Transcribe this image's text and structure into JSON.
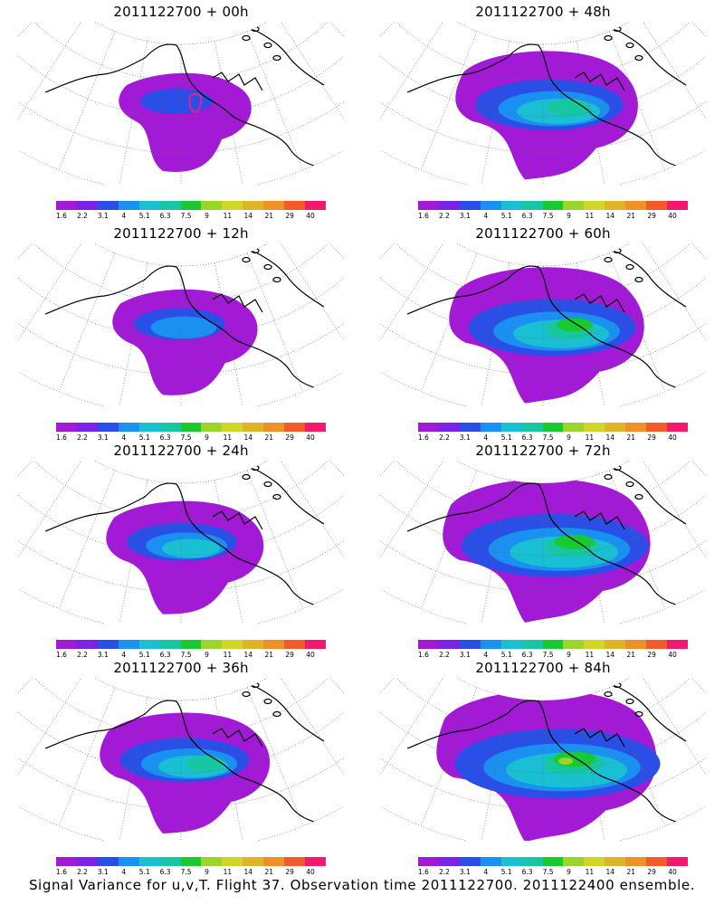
{
  "panels": [
    {
      "title": "2011122700 + 00h",
      "level": 0
    },
    {
      "title": "2011122700 + 12h",
      "level": 1
    },
    {
      "title": "2011122700 + 24h",
      "level": 2
    },
    {
      "title": "2011122700 + 36h",
      "level": 3
    },
    {
      "title": "2011122700 + 48h",
      "level": 4
    },
    {
      "title": "2011122700 + 60h",
      "level": 5
    },
    {
      "title": "2011122700 + 72h",
      "level": 6
    },
    {
      "title": "2011122700 + 84h",
      "level": 7
    }
  ],
  "colorbar": {
    "labels": [
      "1.6",
      "2.2",
      "3.1",
      "4",
      "5.1",
      "6.3",
      "7.5",
      "9",
      "11",
      "14",
      "21",
      "29",
      "40"
    ],
    "colors": [
      "#a21ad6",
      "#7a22e6",
      "#2a4fe6",
      "#1a90f0",
      "#19bfd2",
      "#16c7a2",
      "#18c932",
      "#9ad62a",
      "#d2d626",
      "#e0b428",
      "#ee9126",
      "#f25a2c",
      "#f2186e"
    ]
  },
  "caption": "Signal Variance for u,v,T. Flight 37. Observation time 2011122700. 2011122400 ensemble."
}
